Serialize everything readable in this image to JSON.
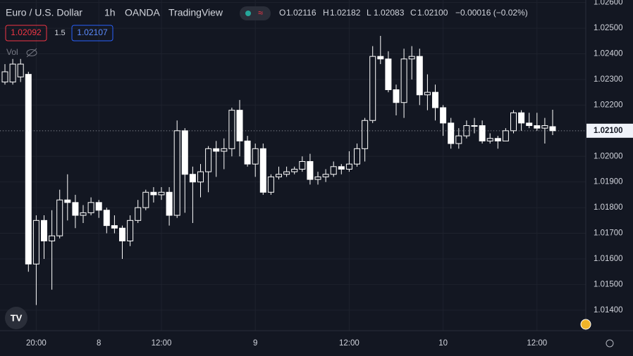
{
  "chart_data": {
    "type": "candlestick",
    "title": "Euro / U.S. Dollar",
    "interval": "1h",
    "source": "OANDA",
    "platform": "TradingView",
    "ohlc_legend": [
      {
        "key": "O",
        "value": "1.02116"
      },
      {
        "key": "H",
        "value": "1.02182"
      },
      {
        "key": "L",
        "value": "1.02083"
      },
      {
        "key": "C",
        "value": "1.02100"
      }
    ],
    "change": "−0.00016 (−0.02%)",
    "sell_price": "1.02092",
    "spread": "1.5",
    "buy_price": "1.02107",
    "volume_label": "Vol",
    "up_color": "#131722",
    "down_color": "#ffffff",
    "wick_color": "#ffffff",
    "categories": [
      null,
      null,
      null,
      null,
      "20:00",
      null,
      null,
      null,
      null,
      null,
      null,
      null,
      "8",
      null,
      null,
      null,
      null,
      null,
      null,
      null,
      "12:00",
      null,
      null,
      null,
      null,
      null,
      null,
      null,
      null,
      null,
      null,
      null,
      "9",
      null,
      null,
      null,
      null,
      null,
      null,
      null,
      null,
      null,
      null,
      null,
      "12:00",
      null,
      null,
      null,
      null,
      null,
      null,
      null,
      null,
      null,
      null,
      null,
      "10",
      null,
      null,
      null,
      null,
      null,
      null,
      null,
      null,
      null,
      null,
      null,
      "12:00",
      null,
      null
    ],
    "open": [
      1.0229,
      1.0229,
      1.0231,
      1.0232,
      1.0158,
      1.0175,
      1.0167,
      1.0169,
      1.0183,
      1.0182,
      1.0177,
      1.0178,
      1.0182,
      1.0179,
      1.0173,
      1.0172,
      1.0167,
      1.0175,
      1.018,
      1.0186,
      1.0185,
      1.0186,
      1.0177,
      1.021,
      1.0193,
      1.019,
      1.0194,
      1.0203,
      1.0202,
      1.0203,
      1.0218,
      1.0206,
      1.0197,
      1.0203,
      1.0186,
      1.0192,
      1.0193,
      1.0194,
      1.0195,
      1.0198,
      1.0191,
      1.0192,
      1.0193,
      1.0196,
      1.0195,
      1.0197,
      1.0203,
      1.0214,
      1.0239,
      1.0238,
      1.0226,
      1.0221,
      1.0238,
      1.0239,
      1.0224,
      1.0225,
      1.0219,
      1.0213,
      1.0205,
      1.0208,
      1.0212,
      1.0212,
      1.0206,
      1.0207,
      1.0206,
      1.021,
      1.0217,
      1.0213,
      1.0212,
      1.0211,
      1.02116
    ],
    "high": [
      1.0236,
      1.0238,
      1.0238,
      1.0233,
      1.0177,
      1.0177,
      1.0179,
      1.0187,
      1.0193,
      1.0185,
      1.0181,
      1.0184,
      1.0183,
      1.018,
      1.0177,
      1.0173,
      1.0177,
      1.0183,
      1.0187,
      1.0188,
      1.0188,
      1.0188,
      1.0214,
      1.0211,
      1.0196,
      1.0197,
      1.0204,
      1.0206,
      1.0207,
      1.0219,
      1.0222,
      1.0208,
      1.0205,
      1.0205,
      1.0193,
      1.0196,
      1.0196,
      1.0196,
      1.02,
      1.0201,
      1.0194,
      1.0195,
      1.0198,
      1.0197,
      1.0202,
      1.0205,
      1.0215,
      1.0243,
      1.0247,
      1.0241,
      1.0228,
      1.0242,
      1.0243,
      1.0242,
      1.0232,
      1.0228,
      1.022,
      1.0215,
      1.0211,
      1.0214,
      1.0215,
      1.0214,
      1.0209,
      1.0208,
      1.0211,
      1.0218,
      1.0218,
      1.0217,
      1.0217,
      1.0215,
      1.02182
    ],
    "low": [
      1.0228,
      1.0228,
      1.0229,
      1.0155,
      1.0142,
      1.016,
      1.0148,
      1.0168,
      1.0175,
      1.0172,
      1.0174,
      1.0177,
      1.0176,
      1.017,
      1.017,
      1.016,
      1.0165,
      1.0174,
      1.0179,
      1.0182,
      1.0183,
      1.0173,
      1.0176,
      1.0178,
      1.0174,
      1.0184,
      1.0186,
      1.0192,
      1.0195,
      1.02,
      1.02,
      1.0196,
      1.0192,
      1.0185,
      1.0185,
      1.0191,
      1.0192,
      1.0193,
      1.0194,
      1.0189,
      1.0189,
      1.019,
      1.0192,
      1.0193,
      1.0194,
      1.0196,
      1.0198,
      1.0213,
      1.0236,
      1.0225,
      1.0216,
      1.0215,
      1.023,
      1.022,
      1.0218,
      1.0214,
      1.0208,
      1.0203,
      1.0203,
      1.0207,
      1.0209,
      1.0205,
      1.0205,
      1.0203,
      1.0206,
      1.0209,
      1.021,
      1.0211,
      1.021,
      1.0205,
      1.02083
    ],
    "close": [
      1.0233,
      1.0236,
      1.0236,
      1.0158,
      1.0175,
      1.0167,
      1.0169,
      1.0183,
      1.0182,
      1.0177,
      1.0178,
      1.0182,
      1.0179,
      1.0173,
      1.0172,
      1.0167,
      1.0175,
      1.018,
      1.0186,
      1.0185,
      1.0186,
      1.0177,
      1.021,
      1.0193,
      1.019,
      1.0194,
      1.0203,
      1.0202,
      1.0203,
      1.0218,
      1.0206,
      1.0197,
      1.0203,
      1.0186,
      1.0192,
      1.0193,
      1.0194,
      1.0195,
      1.0198,
      1.0191,
      1.0192,
      1.0193,
      1.0196,
      1.0195,
      1.0197,
      1.0203,
      1.0214,
      1.0239,
      1.0238,
      1.0226,
      1.0221,
      1.0238,
      1.0239,
      1.0224,
      1.0225,
      1.0219,
      1.0213,
      1.0205,
      1.0208,
      1.0212,
      1.0212,
      1.0206,
      1.0207,
      1.0206,
      1.021,
      1.0217,
      1.0213,
      1.0212,
      1.0211,
      1.0212,
      1.021
    ],
    "ylim": [
      1.0132,
      1.0261
    ],
    "yticks": [
      {
        "value": 1.014,
        "label": "1.01400"
      },
      {
        "value": 1.015,
        "label": "1.01500"
      },
      {
        "value": 1.016,
        "label": "1.01600"
      },
      {
        "value": 1.017,
        "label": "1.01700"
      },
      {
        "value": 1.018,
        "label": "1.01800"
      },
      {
        "value": 1.019,
        "label": "1.01900"
      },
      {
        "value": 1.02,
        "label": "1.02000"
      },
      {
        "value": 1.021,
        "label": "1.02100"
      },
      {
        "value": 1.022,
        "label": "1.02200"
      },
      {
        "value": 1.023,
        "label": "1.02300"
      },
      {
        "value": 1.024,
        "label": "1.02400"
      },
      {
        "value": 1.025,
        "label": "1.02500"
      },
      {
        "value": 1.026,
        "label": "1.02600"
      }
    ],
    "last_price": {
      "value": 1.021,
      "label": "1.02100"
    },
    "grid": true
  }
}
